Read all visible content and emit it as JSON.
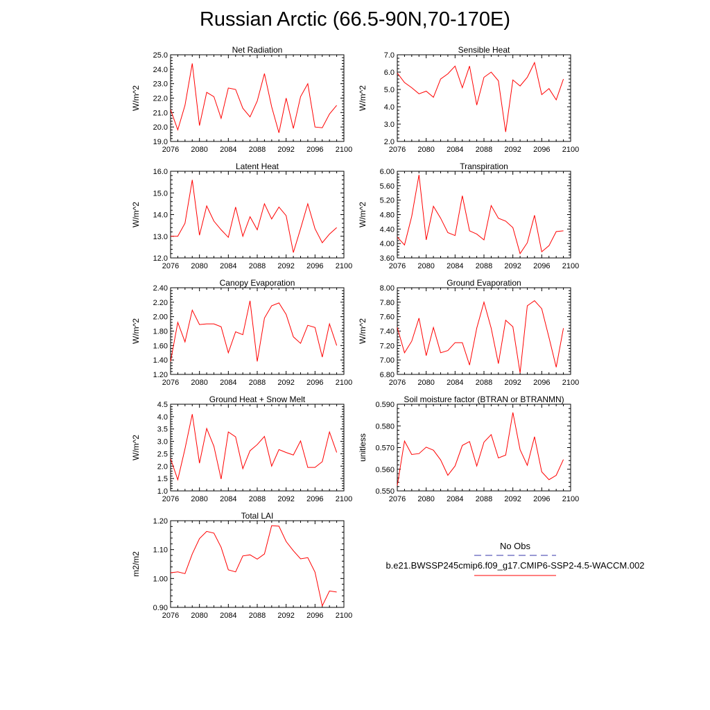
{
  "title": "Russian Arctic (66.5-90N,70-170E)",
  "colors": {
    "model_line": "#ff0000",
    "obs_line": "#3333aa",
    "frame": "#000000"
  },
  "legend": {
    "obs_label": "No Obs",
    "model_label": "b.e21.BWSSP245cmip6.f09_g17.CMIP6-SSP2-4.5-WACCM.002"
  },
  "chart_data": [
    {
      "type": "line",
      "title": "Net Radiation",
      "ylabel": "W/m^2",
      "xlim": [
        2076,
        2100
      ],
      "ylim": [
        19.0,
        25.0
      ],
      "xticks": [
        "2076",
        "2080",
        "2084",
        "2088",
        "2092",
        "2096",
        "2100"
      ],
      "yticks": [
        "19.0",
        "20.0",
        "21.0",
        "22.0",
        "23.0",
        "24.0",
        "25.0"
      ],
      "x": [
        2076,
        2077,
        2078,
        2079,
        2080,
        2081,
        2082,
        2083,
        2084,
        2085,
        2086,
        2087,
        2088,
        2089,
        2090,
        2091,
        2092,
        2093,
        2094,
        2095,
        2096,
        2097,
        2098,
        2099
      ],
      "series": [
        {
          "values": [
            21.2,
            19.8,
            21.5,
            24.4,
            20.1,
            22.4,
            22.1,
            20.6,
            22.7,
            22.6,
            21.3,
            20.7,
            21.8,
            23.7,
            21.4,
            19.6,
            22.0,
            19.9,
            22.1,
            23.0,
            20.0,
            19.95,
            20.9,
            21.5
          ]
        }
      ]
    },
    {
      "type": "line",
      "title": "Sensible Heat",
      "ylabel": "W/m^2",
      "xlim": [
        2076,
        2100
      ],
      "ylim": [
        2.0,
        7.0
      ],
      "xticks": [
        "2076",
        "2080",
        "2084",
        "2088",
        "2092",
        "2096",
        "2100"
      ],
      "yticks": [
        "2.0",
        "3.0",
        "4.0",
        "5.0",
        "6.0",
        "7.0"
      ],
      "x": [
        2076,
        2077,
        2078,
        2079,
        2080,
        2081,
        2082,
        2083,
        2084,
        2085,
        2086,
        2087,
        2088,
        2089,
        2090,
        2091,
        2092,
        2093,
        2094,
        2095,
        2096,
        2097,
        2098,
        2099
      ],
      "series": [
        {
          "values": [
            5.95,
            5.4,
            5.1,
            4.75,
            4.9,
            4.55,
            5.6,
            5.9,
            6.35,
            5.1,
            6.35,
            4.1,
            5.7,
            6.0,
            5.5,
            2.55,
            5.55,
            5.2,
            5.7,
            6.55,
            4.7,
            5.05,
            4.4,
            5.6
          ]
        }
      ]
    },
    {
      "type": "line",
      "title": "Latent Heat",
      "ylabel": "W/m^2",
      "xlim": [
        2076,
        2100
      ],
      "ylim": [
        12.0,
        16.0
      ],
      "xticks": [
        "2076",
        "2080",
        "2084",
        "2088",
        "2092",
        "2096",
        "2100"
      ],
      "yticks": [
        "12.0",
        "13.0",
        "14.0",
        "15.0",
        "16.0"
      ],
      "x": [
        2076,
        2077,
        2078,
        2079,
        2080,
        2081,
        2082,
        2083,
        2084,
        2085,
        2086,
        2087,
        2088,
        2089,
        2090,
        2091,
        2092,
        2093,
        2094,
        2095,
        2096,
        2097,
        2098,
        2099
      ],
      "series": [
        {
          "values": [
            13.0,
            13.0,
            13.6,
            15.6,
            13.05,
            14.4,
            13.7,
            13.3,
            12.95,
            14.35,
            13.0,
            13.9,
            13.3,
            14.5,
            13.8,
            14.35,
            13.95,
            12.25,
            13.35,
            14.5,
            13.35,
            12.7,
            13.1,
            13.4
          ]
        }
      ]
    },
    {
      "type": "line",
      "title": "Transpiration",
      "ylabel": "W/m^2",
      "xlim": [
        2076,
        2100
      ],
      "ylim": [
        3.6,
        6.0
      ],
      "xticks": [
        "2076",
        "2080",
        "2084",
        "2088",
        "2092",
        "2096",
        "2100"
      ],
      "yticks": [
        "3.60",
        "4.00",
        "4.40",
        "4.80",
        "5.20",
        "5.60",
        "6.00"
      ],
      "x": [
        2076,
        2077,
        2078,
        2079,
        2080,
        2081,
        2082,
        2083,
        2084,
        2085,
        2086,
        2087,
        2088,
        2089,
        2090,
        2091,
        2092,
        2093,
        2094,
        2095,
        2096,
        2097,
        2098,
        2099
      ],
      "series": [
        {
          "values": [
            4.18,
            3.96,
            4.75,
            5.9,
            4.1,
            5.03,
            4.7,
            4.3,
            4.22,
            5.32,
            4.35,
            4.26,
            4.1,
            5.05,
            4.7,
            4.62,
            4.44,
            3.72,
            4.02,
            4.78,
            3.77,
            3.94,
            4.33,
            4.35
          ]
        }
      ]
    },
    {
      "type": "line",
      "title": "Canopy Evaporation",
      "ylabel": "W/m^2",
      "xlim": [
        2076,
        2100
      ],
      "ylim": [
        1.2,
        2.4
      ],
      "xticks": [
        "2076",
        "2080",
        "2084",
        "2088",
        "2092",
        "2096",
        "2100"
      ],
      "yticks": [
        "1.20",
        "1.40",
        "1.60",
        "1.80",
        "2.00",
        "2.20",
        "2.40"
      ],
      "x": [
        2076,
        2077,
        2078,
        2079,
        2080,
        2081,
        2082,
        2083,
        2084,
        2085,
        2086,
        2087,
        2088,
        2089,
        2090,
        2091,
        2092,
        2093,
        2094,
        2095,
        2096,
        2097,
        2098,
        2099
      ],
      "series": [
        {
          "values": [
            1.38,
            1.92,
            1.65,
            2.09,
            1.89,
            1.9,
            1.9,
            1.86,
            1.5,
            1.79,
            1.75,
            2.22,
            1.38,
            1.98,
            2.15,
            2.19,
            2.03,
            1.72,
            1.63,
            1.88,
            1.85,
            1.44,
            1.9,
            1.6
          ]
        }
      ]
    },
    {
      "type": "line",
      "title": "Ground Evaporation",
      "ylabel": "W/m^2",
      "xlim": [
        2076,
        2100
      ],
      "ylim": [
        6.8,
        8.0
      ],
      "xticks": [
        "2076",
        "2080",
        "2084",
        "2088",
        "2092",
        "2096",
        "2100"
      ],
      "yticks": [
        "6.80",
        "7.00",
        "7.20",
        "7.40",
        "7.60",
        "7.80",
        "8.00"
      ],
      "x": [
        2076,
        2077,
        2078,
        2079,
        2080,
        2081,
        2082,
        2083,
        2084,
        2085,
        2086,
        2087,
        2088,
        2089,
        2090,
        2091,
        2092,
        2093,
        2094,
        2095,
        2096,
        2097,
        2098,
        2099
      ],
      "series": [
        {
          "values": [
            7.45,
            7.1,
            7.26,
            7.58,
            7.06,
            7.45,
            7.1,
            7.13,
            7.24,
            7.24,
            6.93,
            7.44,
            7.8,
            7.44,
            6.95,
            7.55,
            7.46,
            6.82,
            7.75,
            7.82,
            7.71,
            7.31,
            6.9,
            7.44
          ]
        }
      ]
    },
    {
      "type": "line",
      "title": "Ground Heat + Snow Melt",
      "ylabel": "W/m^2",
      "xlim": [
        2076,
        2100
      ],
      "ylim": [
        1.0,
        4.5
      ],
      "xticks": [
        "2076",
        "2080",
        "2084",
        "2088",
        "2092",
        "2096",
        "2100"
      ],
      "yticks": [
        "1.0",
        "1.5",
        "2.0",
        "2.5",
        "3.0",
        "3.5",
        "4.0",
        "4.5"
      ],
      "x": [
        2076,
        2077,
        2078,
        2079,
        2080,
        2081,
        2082,
        2083,
        2084,
        2085,
        2086,
        2087,
        2088,
        2089,
        2090,
        2091,
        2092,
        2093,
        2094,
        2095,
        2096,
        2097,
        2098,
        2099
      ],
      "series": [
        {
          "values": [
            2.3,
            1.45,
            2.7,
            4.1,
            2.12,
            3.52,
            2.8,
            1.48,
            3.38,
            3.18,
            1.9,
            2.62,
            2.87,
            3.2,
            2.0,
            2.67,
            2.55,
            2.45,
            3.02,
            1.95,
            1.95,
            2.18,
            3.38,
            2.55
          ]
        }
      ]
    },
    {
      "type": "line",
      "title": "Soil moisture factor (BTRAN or BTRANMN)",
      "ylabel": "unitless",
      "xlim": [
        2076,
        2100
      ],
      "ylim": [
        0.55,
        0.59
      ],
      "xticks": [
        "2076",
        "2080",
        "2084",
        "2088",
        "2092",
        "2096",
        "2100"
      ],
      "yticks": [
        "0.550",
        "0.560",
        "0.570",
        "0.580",
        "0.590"
      ],
      "x": [
        2076,
        2077,
        2078,
        2079,
        2080,
        2081,
        2082,
        2083,
        2084,
        2085,
        2086,
        2087,
        2088,
        2089,
        2090,
        2091,
        2092,
        2093,
        2094,
        2095,
        2096,
        2097,
        2098,
        2099
      ],
      "series": [
        {
          "values": [
            0.5525,
            0.573,
            0.5668,
            0.5672,
            0.5702,
            0.5688,
            0.5643,
            0.5572,
            0.5615,
            0.571,
            0.5728,
            0.5615,
            0.5725,
            0.576,
            0.5652,
            0.5665,
            0.5862,
            0.569,
            0.5618,
            0.575,
            0.5588,
            0.5552,
            0.5572,
            0.5645
          ]
        }
      ]
    },
    {
      "type": "line",
      "title": "Total LAI",
      "ylabel": "m2/m2",
      "xlim": [
        2076,
        2100
      ],
      "ylim": [
        0.9,
        1.2
      ],
      "xticks": [
        "2076",
        "2080",
        "2084",
        "2088",
        "2092",
        "2096",
        "2100"
      ],
      "yticks": [
        "0.90",
        "1.00",
        "1.10",
        "1.20"
      ],
      "x": [
        2076,
        2077,
        2078,
        2079,
        2080,
        2081,
        2082,
        2083,
        2084,
        2085,
        2086,
        2087,
        2088,
        2089,
        2090,
        2091,
        2092,
        2093,
        2094,
        2095,
        2096,
        2097,
        2098,
        2099
      ],
      "series": [
        {
          "values": [
            1.02,
            1.023,
            1.017,
            1.085,
            1.138,
            1.163,
            1.157,
            1.108,
            1.03,
            1.023,
            1.078,
            1.082,
            1.067,
            1.085,
            1.183,
            1.181,
            1.128,
            1.096,
            1.068,
            1.072,
            1.022,
            0.905,
            0.957,
            0.953
          ]
        }
      ]
    }
  ]
}
